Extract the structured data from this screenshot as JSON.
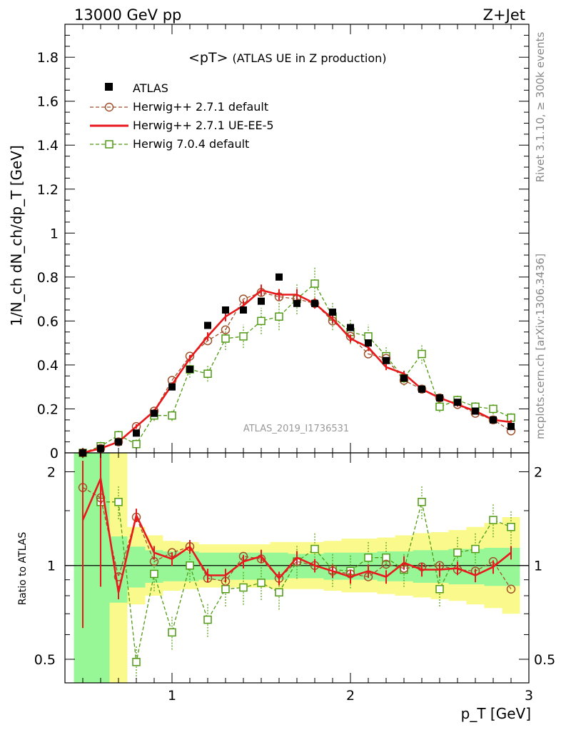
{
  "header": {
    "left": "13000 GeV pp",
    "right": "Z+Jet"
  },
  "plot": {
    "title_main": "<pT>",
    "title_sub": "(ATLAS UE in Z production)",
    "ylabel": "1/N_ch dN_ch/dp_T [GeV]",
    "ratio_ylabel": "Ratio to ATLAS",
    "xlabel": "p_T [GeV]",
    "watermark": "ATLAS_2019_I1736531",
    "side_rivet": "Rivet 3.1.10, ≥ 300k events",
    "side_mcplots": "mcplots.cern.ch [arXiv:1306.3436]"
  },
  "legend": [
    {
      "key": "atlas",
      "label": "ATLAS"
    },
    {
      "key": "h271",
      "label": "Herwig++ 2.7.1 default"
    },
    {
      "key": "h271ue",
      "label": "Herwig++ 2.7.1 UE-EE-5"
    },
    {
      "key": "h704",
      "label": "Herwig 7.0.4 default"
    }
  ],
  "colors": {
    "atlas": "#000000",
    "h271": "#a0522d",
    "h271ue": "#e8191c",
    "h704": "#4f9a12",
    "band_inner": "#97f797",
    "band_outer": "#fafa8c"
  },
  "chart_data": {
    "type": "line",
    "xlim": [
      0.4,
      3.0
    ],
    "ylim_main": [
      0,
      1.95
    ],
    "ylim_ratio": [
      0.42,
      2.3
    ],
    "ratio_log": true,
    "x_ticks": [
      "1",
      "2",
      "3"
    ],
    "y_ticks_main": [
      "0",
      "0.2",
      "0.4",
      "0.6",
      "0.8",
      "1",
      "1.2",
      "1.4",
      "1.6",
      "1.8"
    ],
    "y_ticks_ratio": [
      "0.5",
      "1",
      "2"
    ],
    "x": [
      0.5,
      0.6,
      0.7,
      0.8,
      0.9,
      1.0,
      1.1,
      1.2,
      1.3,
      1.4,
      1.5,
      1.6,
      1.7,
      1.8,
      1.9,
      2.0,
      2.1,
      2.2,
      2.3,
      2.4,
      2.5,
      2.6,
      2.7,
      2.8,
      2.9
    ],
    "atlas": [
      0.0,
      0.02,
      0.05,
      0.09,
      0.18,
      0.3,
      0.38,
      0.58,
      0.65,
      0.65,
      0.69,
      0.8,
      0.68,
      0.68,
      0.64,
      0.57,
      0.5,
      0.42,
      0.34,
      0.29,
      0.25,
      0.23,
      0.19,
      0.15,
      0.12
    ],
    "series": [
      {
        "key": "h271",
        "values": [
          0.0,
          0.02,
          0.05,
          0.12,
          0.19,
          0.33,
          0.44,
          0.51,
          0.56,
          0.7,
          0.73,
          0.71,
          0.7,
          0.68,
          0.6,
          0.53,
          0.45,
          0.43,
          0.33,
          0.29,
          0.25,
          0.22,
          0.18,
          0.15,
          0.1
        ],
        "ratio": [
          1.78,
          1.65,
          0.92,
          1.43,
          1.03,
          1.1,
          1.15,
          0.91,
          0.89,
          1.07,
          1.05,
          0.91,
          1.03,
          1.0,
          0.96,
          0.94,
          0.92,
          1.01,
          0.98,
          0.99,
          1.0,
          0.97,
          0.96,
          1.03,
          0.84
        ]
      },
      {
        "key": "h271ue",
        "values": [
          0.0,
          0.02,
          0.05,
          0.12,
          0.19,
          0.31,
          0.43,
          0.53,
          0.62,
          0.67,
          0.74,
          0.72,
          0.72,
          0.68,
          0.61,
          0.52,
          0.48,
          0.39,
          0.36,
          0.29,
          0.25,
          0.22,
          0.19,
          0.15,
          0.14
        ],
        "ratio": [
          1.4,
          1.9,
          0.82,
          1.45,
          1.1,
          1.05,
          1.15,
          0.93,
          0.93,
          1.03,
          1.07,
          0.91,
          1.06,
          1.0,
          0.96,
          0.92,
          0.96,
          0.92,
          1.02,
          0.97,
          0.97,
          0.98,
          0.93,
          0.99,
          1.1
        ]
      },
      {
        "key": "h704",
        "values": [
          0.0,
          0.03,
          0.08,
          0.04,
          0.17,
          0.17,
          0.38,
          0.36,
          0.52,
          0.53,
          0.6,
          0.62,
          0.7,
          0.77,
          0.62,
          0.55,
          0.53,
          0.44,
          0.34,
          0.45,
          0.21,
          0.24,
          0.21,
          0.2,
          0.16
        ],
        "ratio": [
          null,
          1.6,
          1.6,
          0.49,
          0.94,
          0.61,
          1.0,
          0.67,
          0.84,
          0.85,
          0.88,
          0.82,
          1.03,
          1.13,
          0.97,
          0.96,
          1.06,
          1.06,
          0.97,
          1.6,
          0.84,
          1.1,
          1.13,
          1.4,
          1.33
        ]
      }
    ],
    "bands": {
      "inner_low": [
        0.3,
        0.3,
        0.76,
        0.85,
        0.88,
        0.89,
        0.89,
        0.9,
        0.9,
        0.9,
        0.9,
        0.9,
        0.91,
        0.91,
        0.9,
        0.9,
        0.9,
        0.89,
        0.89,
        0.88,
        0.88,
        0.87,
        0.87,
        0.86,
        0.86
      ],
      "inner_high": [
        2.3,
        2.3,
        1.24,
        1.15,
        1.12,
        1.11,
        1.11,
        1.1,
        1.1,
        1.1,
        1.1,
        1.1,
        1.09,
        1.09,
        1.1,
        1.1,
        1.1,
        1.11,
        1.11,
        1.12,
        1.12,
        1.13,
        1.13,
        1.14,
        1.14
      ],
      "outer_low": [
        0.3,
        0.3,
        0.4,
        0.75,
        0.8,
        0.83,
        0.84,
        0.85,
        0.85,
        0.85,
        0.85,
        0.84,
        0.84,
        0.84,
        0.83,
        0.82,
        0.82,
        0.81,
        0.8,
        0.79,
        0.78,
        0.77,
        0.75,
        0.73,
        0.7
      ],
      "outer_high": [
        2.3,
        2.3,
        2.3,
        1.33,
        1.25,
        1.2,
        1.19,
        1.17,
        1.17,
        1.17,
        1.17,
        1.19,
        1.19,
        1.19,
        1.2,
        1.22,
        1.22,
        1.23,
        1.25,
        1.27,
        1.28,
        1.3,
        1.33,
        1.37,
        1.43
      ]
    }
  }
}
